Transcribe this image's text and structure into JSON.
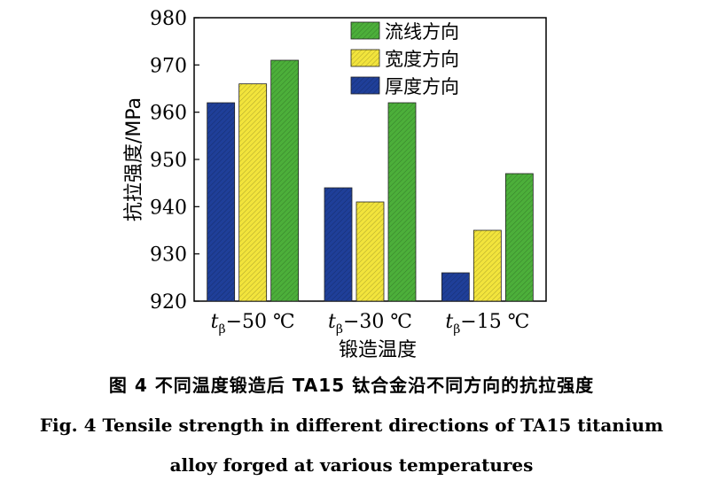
{
  "chart_data": {
    "type": "bar",
    "categories": [
      {
        "main": "t",
        "sub": "β",
        "rest": "−50 ℃"
      },
      {
        "main": "t",
        "sub": "β",
        "rest": "−30 ℃"
      },
      {
        "main": "t",
        "sub": "β",
        "rest": "−15 ℃"
      }
    ],
    "series": [
      {
        "name": "厚度方向",
        "color": "#1f3f99",
        "values": [
          962,
          944,
          926
        ]
      },
      {
        "name": "宽度方向",
        "color": "#f2e43c",
        "values": [
          966,
          941,
          935
        ]
      },
      {
        "name": "流线方向",
        "color": "#4caf3a",
        "values": [
          971,
          962,
          947
        ]
      }
    ],
    "legend_order": [
      2,
      1,
      0
    ],
    "legend_position": "top-right",
    "xlabel": "锻造温度",
    "ylabel": "抗拉强度/MPa",
    "ylim": [
      920,
      980
    ],
    "yticks": [
      920,
      930,
      940,
      950,
      960,
      970,
      980
    ],
    "grid": false
  },
  "caption": {
    "cn": "图 4   不同温度锻造后 TA15 钛合金沿不同方向的抗拉强度",
    "en_line1": "Fig. 4    Tensile strength in different directions of TA15 titanium",
    "en_line2": "alloy forged at various temperatures"
  }
}
